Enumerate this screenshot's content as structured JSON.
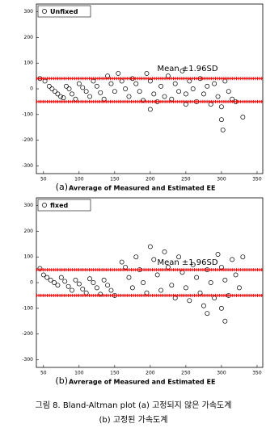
{
  "chart_data": [
    {
      "type": "scatter",
      "label": "(a)",
      "x_label": "Avrerage of Measured and Estimated EE",
      "annotation": "Mean ±1.96SD",
      "legend": "upper left",
      "series": [
        {
          "name": "Unfixed",
          "color": "#000000",
          "x": [
            45,
            52,
            58,
            62,
            66,
            70,
            74,
            78,
            82,
            86,
            90,
            95,
            100,
            105,
            110,
            115,
            120,
            125,
            130,
            135,
            140,
            145,
            150,
            155,
            160,
            165,
            170,
            175,
            180,
            185,
            190,
            195,
            200,
            205,
            210,
            215,
            220,
            225,
            230,
            235,
            240,
            245,
            250,
            255,
            260,
            265,
            270,
            275,
            280,
            285,
            290,
            295,
            300,
            305,
            310,
            315,
            320,
            200,
            250,
            300,
            302,
            330
          ],
          "values": [
            40,
            30,
            10,
            0,
            -10,
            -20,
            -30,
            -35,
            10,
            0,
            -20,
            -40,
            20,
            5,
            -10,
            -30,
            30,
            10,
            -15,
            -40,
            50,
            20,
            -10,
            60,
            30,
            0,
            -30,
            40,
            20,
            -10,
            -45,
            60,
            30,
            -20,
            -50,
            10,
            -30,
            50,
            -40,
            20,
            -10,
            70,
            -60,
            30,
            0,
            -50,
            40,
            -20,
            10,
            -60,
            20,
            -30,
            -70,
            30,
            -10,
            -40,
            -50,
            -80,
            -20,
            -120,
            -160,
            -110
          ]
        }
      ],
      "hlines": [
        40,
        -50
      ],
      "hline_color": "#ff0000",
      "xlim": [
        40,
        358
      ],
      "ylim": [
        -330,
        330
      ],
      "xticks": [
        50,
        100,
        150,
        200,
        250,
        300,
        350
      ],
      "yticks": [
        -300,
        -200,
        -100,
        0,
        100,
        200,
        300
      ]
    },
    {
      "type": "scatter",
      "label": "(b)",
      "x_label": "Avrerage of Measured and Estimated EE",
      "annotation": "Mean ±1.96SD",
      "legend": "upper left",
      "series": [
        {
          "name": "fixed",
          "color": "#000000",
          "x": [
            45,
            50,
            55,
            60,
            65,
            70,
            75,
            80,
            85,
            90,
            95,
            100,
            105,
            110,
            115,
            120,
            125,
            130,
            135,
            140,
            145,
            150,
            160,
            165,
            170,
            175,
            180,
            185,
            190,
            195,
            200,
            205,
            210,
            215,
            220,
            225,
            230,
            235,
            240,
            245,
            250,
            255,
            260,
            265,
            270,
            275,
            280,
            285,
            290,
            295,
            300,
            305,
            310,
            315,
            320,
            325,
            330,
            300,
            305,
            280
          ],
          "values": [
            55,
            30,
            20,
            10,
            0,
            -10,
            20,
            5,
            -15,
            -30,
            10,
            -5,
            -25,
            -40,
            15,
            0,
            -20,
            -45,
            10,
            -10,
            -30,
            -50,
            80,
            60,
            20,
            -20,
            100,
            50,
            0,
            -40,
            140,
            90,
            30,
            -30,
            120,
            60,
            -10,
            -60,
            100,
            40,
            -20,
            -70,
            70,
            20,
            -40,
            -90,
            50,
            0,
            -60,
            110,
            60,
            10,
            -50,
            90,
            30,
            -20,
            100,
            -100,
            -150,
            -120
          ]
        }
      ],
      "hlines": [
        50,
        -50
      ],
      "hline_color": "#ff0000",
      "xlim": [
        40,
        358
      ],
      "ylim": [
        -330,
        330
      ],
      "xticks": [
        50,
        100,
        150,
        200,
        250,
        300,
        350
      ],
      "yticks": [
        -300,
        -200,
        -100,
        0,
        100,
        200,
        300
      ]
    }
  ],
  "caption": {
    "line1": "그림 8.  Bland-Altman plot (a) 고정되지 않은 가속도계",
    "line2": "(b) 고정된 가속도계"
  }
}
